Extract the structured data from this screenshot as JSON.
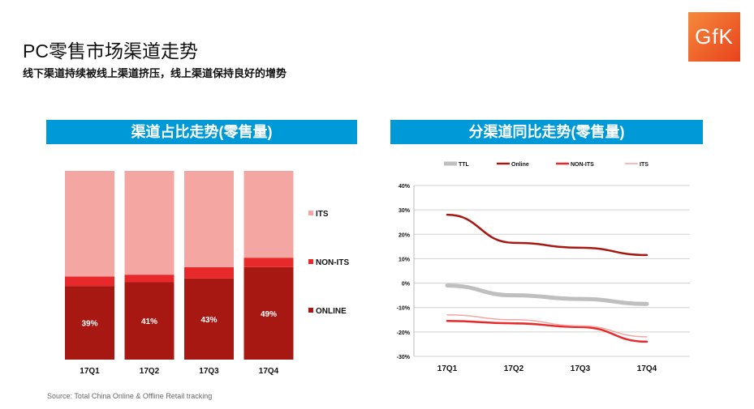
{
  "header": {
    "title": "PC零售市场渠道走势",
    "subtitle": "线下渠道持续被线上渠道挤压，线上渠道保持良好的增势",
    "logo": "GfK"
  },
  "source": "Source: Total China Online & Offline Retail tracking",
  "chart_data": [
    {
      "type": "bar",
      "stacked": true,
      "title": "渠道占比走势(零售量)",
      "categories": [
        "17Q1",
        "17Q2",
        "17Q3",
        "17Q4"
      ],
      "ylim": [
        0,
        100
      ],
      "legend": "right",
      "series": [
        {
          "name": "ONLINE",
          "values": [
            39,
            41,
            43,
            49
          ],
          "labels": [
            "39%",
            "41%",
            "43%",
            "49%"
          ],
          "color": "#a81812"
        },
        {
          "name": "NON-ITS",
          "values": [
            5,
            4,
            6,
            5
          ],
          "color": "#e8292b"
        },
        {
          "name": "ITS",
          "values": [
            56,
            55,
            51,
            46
          ],
          "color": "#f4a6a3"
        }
      ]
    },
    {
      "type": "line",
      "title": "分渠道同比走势(零售量)",
      "categories": [
        "17Q1",
        "17Q2",
        "17Q3",
        "17Q4"
      ],
      "ylim": [
        -30,
        40
      ],
      "yticks": [
        "-30%",
        "-20%",
        "-10%",
        "0%",
        "10%",
        "20%",
        "30%",
        "40%"
      ],
      "grid": true,
      "legend": "top",
      "series": [
        {
          "name": "TTL",
          "values": [
            -1,
            -5,
            -6.5,
            -8.5
          ],
          "color": "#bfbfbf"
        },
        {
          "name": "Online",
          "values": [
            28,
            16.5,
            14.5,
            11.5
          ],
          "color": "#a81812"
        },
        {
          "name": "NON-ITS",
          "values": [
            -15.5,
            -16.5,
            -18,
            -24
          ],
          "color": "#e8292b"
        },
        {
          "name": "ITS",
          "values": [
            -13,
            -15,
            -17.5,
            -22
          ],
          "color": "#f4a6a3"
        }
      ]
    }
  ]
}
